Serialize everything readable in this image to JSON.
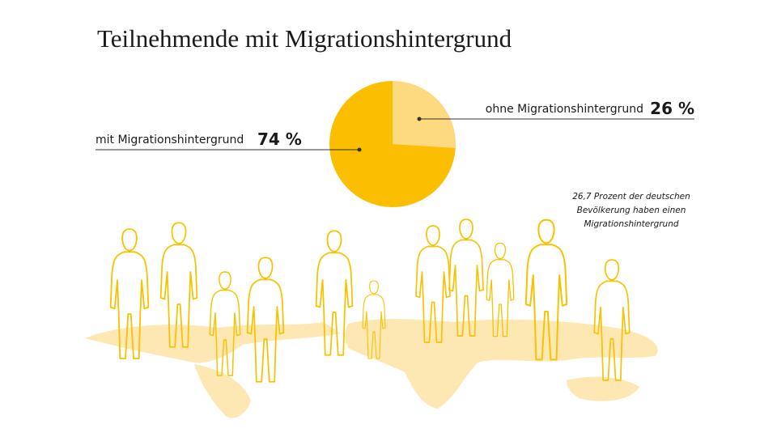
{
  "chart_data": {
    "type": "pie",
    "title": "Teilnehmende mit Migrationshintergrund",
    "categories": [
      "ohne Migrationshintergrund",
      "mit Migrationshintergrund"
    ],
    "values": [
      26,
      74
    ],
    "value_labels": [
      "26 %",
      "74 %"
    ],
    "colors": [
      "#fdd97f",
      "#fbbe00"
    ],
    "annotation": [
      "26,7 Prozent der deutschen",
      "Bevölkerung haben einen",
      "Migrationshintergrund"
    ]
  }
}
